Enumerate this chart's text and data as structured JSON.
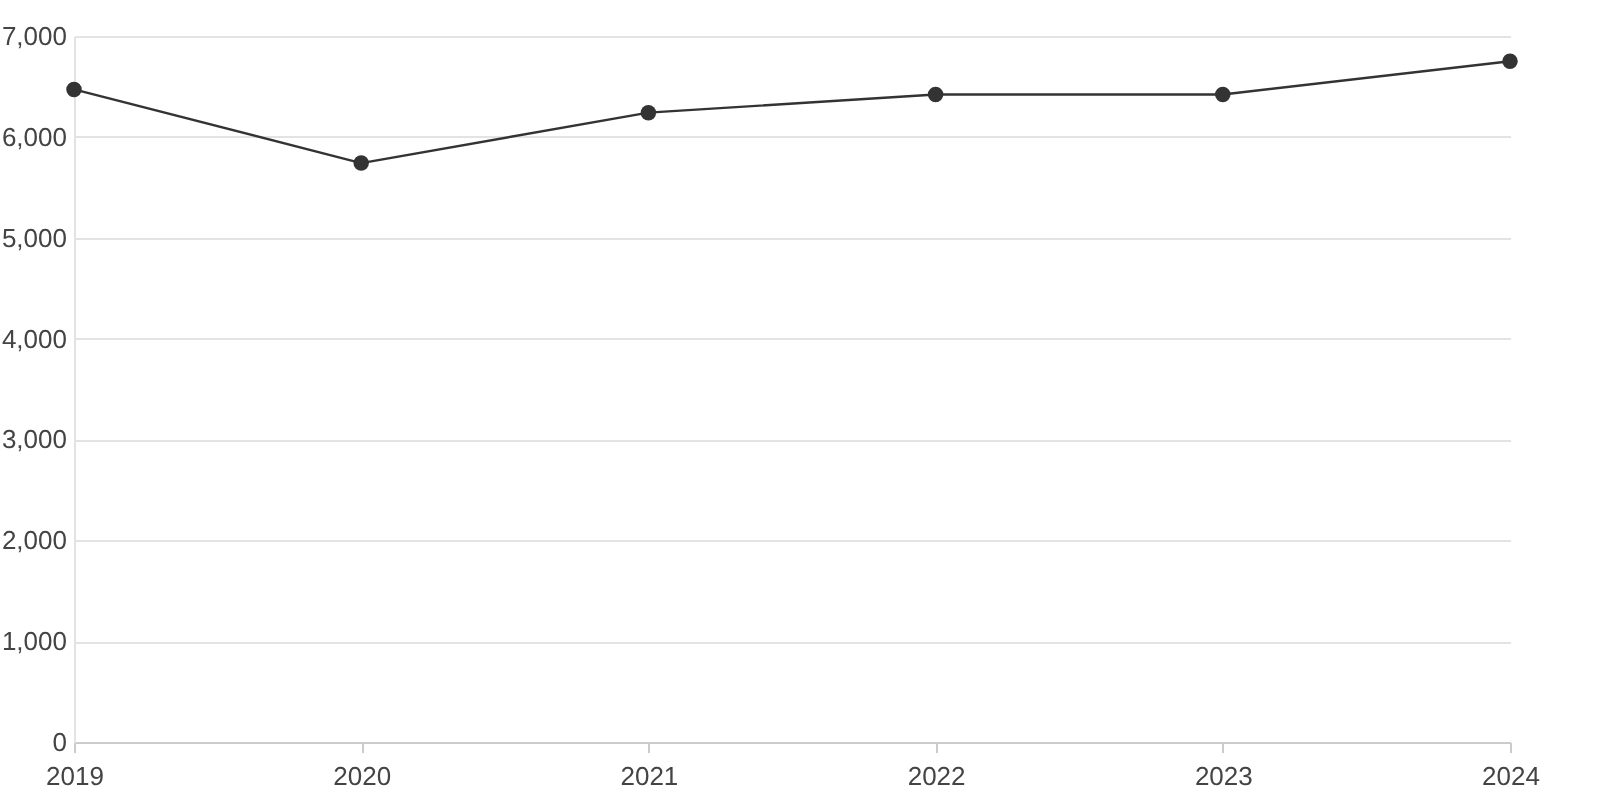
{
  "chart_data": {
    "type": "line",
    "categories": [
      "2019",
      "2020",
      "2021",
      "2022",
      "2023",
      "2024"
    ],
    "series": [
      {
        "color": "#333333",
        "values": [
          6470,
          5740,
          6240,
          6420,
          6420,
          6750
        ]
      }
    ],
    "ylim": [
      0,
      7000
    ],
    "yticks": [
      0,
      {
        "value": 1000,
        "label": "1,000"
      },
      {
        "value": 2000,
        "label": "2,000"
      },
      {
        "value": 3000,
        "label": "3,000"
      },
      {
        "value": 4000,
        "label": "4,000"
      },
      {
        "value": 5000,
        "label": "5,000"
      },
      {
        "value": 6000,
        "label": "6,000"
      },
      {
        "value": 7000,
        "label": "7,000"
      }
    ],
    "grid": "y",
    "marker": "circle",
    "line_style": "solid",
    "legend": false
  }
}
